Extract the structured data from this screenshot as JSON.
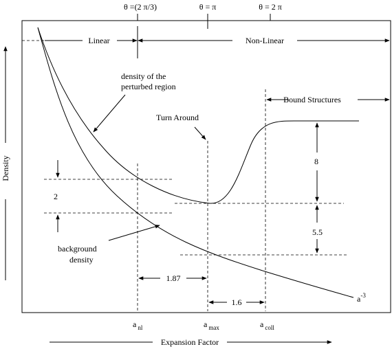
{
  "top_labels": {
    "theta_nl": "θ =(2 π/3)",
    "theta_max": "θ = π",
    "theta_coll": "θ =  2 π"
  },
  "regions": {
    "linear": "Linear",
    "nonlinear": "Non-Linear",
    "bound": "Bound Structures"
  },
  "annotations": {
    "perturbed_line1": "density of the",
    "perturbed_line2": "perturbed region",
    "turn_around": "Turn Around",
    "background_line1": "background",
    "background_line2": "density",
    "power_law_base": "a",
    "power_law_exp": "-3"
  },
  "ratios": {
    "r_2": "2",
    "r_8": "8",
    "r_5_5": "5.5",
    "r_1_87": "1.87",
    "r_1_6": "1.6"
  },
  "x_ticks": [
    {
      "base": "a",
      "sub": "nl"
    },
    {
      "base": "a",
      "sub": "max"
    },
    {
      "base": "a",
      "sub": "coll"
    }
  ],
  "axes": {
    "xlabel": "Expansion Factor",
    "ylabel": "Density"
  }
}
